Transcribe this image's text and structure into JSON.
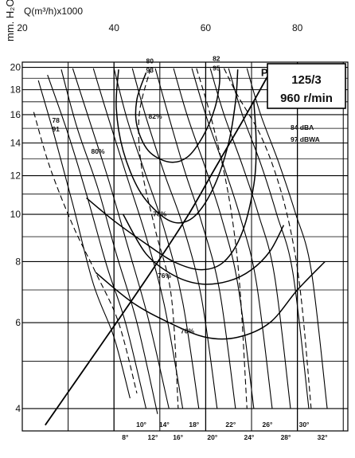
{
  "chart_data": {
    "type": "line",
    "xlabel": "Q(m³/h)x1000",
    "ylabel": "mm. H₂O",
    "x_ticks": [
      "20",
      "40",
      "60",
      "80"
    ],
    "y_ticks": [
      "4",
      "6",
      "8",
      "10",
      "12",
      "14",
      "16",
      "18",
      "20"
    ],
    "xlim": [
      20,
      91
    ],
    "y_scale": "log",
    "ylim": [
      3.6,
      20.5
    ],
    "grid": true,
    "model": "125/3",
    "speed": "960 r/min",
    "pd_label": "Pd",
    "blade_angles": [
      "8°",
      "10°",
      "12°",
      "14°",
      "16°",
      "18°",
      "20°",
      "22°",
      "24°",
      "26°",
      "28°",
      "30°",
      "32°"
    ],
    "efficiency_labels": [
      "82%",
      "80%",
      "78%",
      "76%",
      "70%"
    ],
    "noise_labels": [
      {
        "top": "78",
        "bottom": "91"
      },
      {
        "top": "80",
        "bottom": "93"
      },
      {
        "top": "82",
        "bottom": "95"
      },
      {
        "top": "84 dBA",
        "bottom": "97 dBWA"
      }
    ],
    "blade_curves": [
      {
        "name": "8°",
        "points": [
          [
            23.5,
            18.8
          ],
          [
            27,
            14.5
          ],
          [
            31,
            10.5
          ],
          [
            35.5,
            7.2
          ],
          [
            40,
            5.6
          ],
          [
            43.5,
            4.2
          ]
        ]
      },
      {
        "name": "10°",
        "points": [
          [
            25.5,
            19.3
          ],
          [
            30,
            14.6
          ],
          [
            34,
            11
          ],
          [
            38.5,
            7.8
          ],
          [
            42.5,
            6
          ],
          [
            47,
            4
          ]
        ]
      },
      {
        "name": "12°",
        "points": [
          [
            28.5,
            19.8
          ],
          [
            32,
            15
          ],
          [
            36.5,
            11.3
          ],
          [
            40.5,
            8.3
          ],
          [
            45,
            6
          ],
          [
            49.5,
            3.9
          ]
        ]
      },
      {
        "name": "14°",
        "points": [
          [
            31,
            19.9
          ],
          [
            35,
            15.2
          ],
          [
            39,
            11.6
          ],
          [
            43,
            8.6
          ],
          [
            47.5,
            6.1
          ],
          [
            52,
            4
          ]
        ]
      },
      {
        "name": "16°",
        "points": [
          [
            35.5,
            19.9
          ],
          [
            39,
            15.5
          ],
          [
            43,
            11.8
          ],
          [
            47,
            9
          ],
          [
            51,
            6.5
          ],
          [
            55,
            4
          ]
        ]
      },
      {
        "name": "18°",
        "points": [
          [
            40,
            19.9
          ],
          [
            43,
            15.5
          ],
          [
            47,
            12
          ],
          [
            51,
            9.3
          ],
          [
            55,
            6.6
          ],
          [
            58.5,
            4
          ]
        ]
      },
      {
        "name": "20°",
        "points": [
          [
            44,
            19.9
          ],
          [
            47,
            15.8
          ],
          [
            51,
            12.1
          ],
          [
            55,
            9.5
          ],
          [
            59,
            6.8
          ],
          [
            62.5,
            4
          ]
        ]
      },
      {
        "name": "22°",
        "points": [
          [
            49,
            19.9
          ],
          [
            52,
            15.8
          ],
          [
            55.5,
            12.2
          ],
          [
            59,
            9.7
          ],
          [
            63,
            7
          ],
          [
            66.5,
            4
          ]
        ]
      },
      {
        "name": "24°",
        "points": [
          [
            53,
            19.9
          ],
          [
            56,
            15.9
          ],
          [
            60,
            12.4
          ],
          [
            63.5,
            9.8
          ],
          [
            67,
            7.2
          ],
          [
            70.5,
            4
          ]
        ]
      },
      {
        "name": "26°",
        "points": [
          [
            57,
            19.9
          ],
          [
            60,
            16
          ],
          [
            64,
            12.5
          ],
          [
            67.5,
            9.9
          ],
          [
            71,
            7.3
          ],
          [
            74.5,
            4
          ]
        ]
      },
      {
        "name": "28°",
        "points": [
          [
            61,
            19.9
          ],
          [
            64,
            16
          ],
          [
            68,
            12.6
          ],
          [
            71.5,
            10
          ],
          [
            75,
            7.5
          ],
          [
            78.5,
            4
          ]
        ]
      },
      {
        "name": "30°",
        "points": [
          [
            65,
            19.9
          ],
          [
            68,
            16
          ],
          [
            72,
            12.7
          ],
          [
            75.5,
            10
          ],
          [
            79,
            7.6
          ],
          [
            82.5,
            4
          ]
        ]
      },
      {
        "name": "32°",
        "points": [
          [
            69,
            19.9
          ],
          [
            72,
            16
          ],
          [
            76,
            12.7
          ],
          [
            79.5,
            10.1
          ],
          [
            83,
            7.7
          ],
          [
            86.5,
            4
          ]
        ]
      }
    ],
    "efficiency_curves": [
      {
        "name": "82%",
        "points": [
          [
            47,
            19.5
          ],
          [
            45,
            17.2
          ],
          [
            45,
            15.2
          ],
          [
            47.5,
            13.5
          ],
          [
            52,
            12.8
          ],
          [
            56,
            13.1
          ],
          [
            59.5,
            14.5
          ],
          [
            62,
            16.5
          ],
          [
            63,
            18.5
          ],
          [
            63,
            19.8
          ]
        ]
      },
      {
        "name": "80%",
        "points": [
          [
            41,
            19.8
          ],
          [
            40.5,
            16.5
          ],
          [
            42,
            13.5
          ],
          [
            45.5,
            11.2
          ],
          [
            50,
            10
          ],
          [
            54,
            9.6
          ],
          [
            58,
            10
          ],
          [
            62,
            11.5
          ],
          [
            65,
            14
          ],
          [
            66.5,
            17
          ],
          [
            67,
            19.8
          ]
        ]
      },
      {
        "name": "78%",
        "points": [
          [
            34,
            10.8
          ],
          [
            40,
            9.7
          ],
          [
            47,
            8.7
          ],
          [
            53,
            8
          ],
          [
            59,
            7.7
          ],
          [
            64,
            8
          ],
          [
            68,
            9.2
          ],
          [
            70.5,
            11.5
          ],
          [
            71,
            14
          ],
          [
            70.5,
            17
          ]
        ]
      },
      {
        "name": "76%",
        "points": [
          [
            42,
            10
          ],
          [
            47,
            8.3
          ],
          [
            53,
            7.5
          ],
          [
            59,
            7.2
          ],
          [
            65,
            7.3
          ],
          [
            70,
            7.7
          ],
          [
            74,
            8.4
          ],
          [
            77,
            9.5
          ]
        ]
      },
      {
        "name": "70%",
        "points": [
          [
            36,
            7.6
          ],
          [
            44,
            6.6
          ],
          [
            52,
            6
          ],
          [
            60,
            5.6
          ],
          [
            67,
            5.6
          ],
          [
            74,
            6
          ],
          [
            80,
            7
          ],
          [
            86,
            8
          ]
        ]
      }
    ],
    "pd_curve": [
      [
        25,
        3.7
      ],
      [
        32,
        4.6
      ],
      [
        40,
        5.9
      ],
      [
        48,
        7.6
      ],
      [
        56,
        9.9
      ],
      [
        62,
        12.4
      ],
      [
        68,
        15.5
      ],
      [
        73,
        18.8
      ],
      [
        75,
        20.3
      ]
    ]
  }
}
